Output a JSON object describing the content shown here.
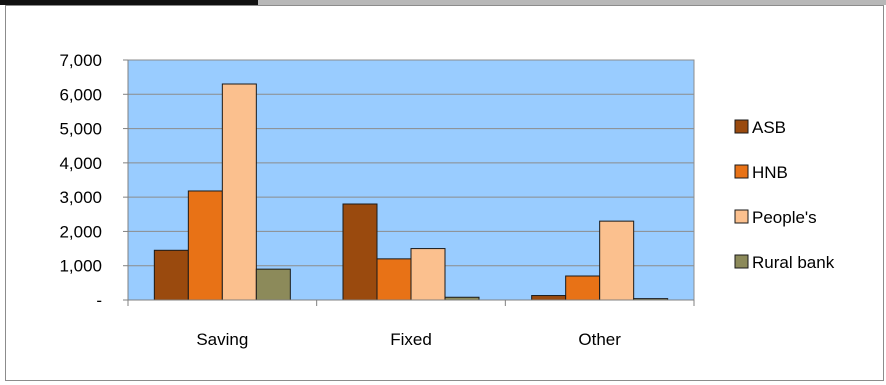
{
  "chart_data": {
    "type": "bar",
    "categories": [
      "Saving",
      "Fixed",
      "Other"
    ],
    "series": [
      {
        "name": "ASB",
        "color": "#9a4a0e",
        "values": [
          1450,
          2800,
          130
        ]
      },
      {
        "name": "HNB",
        "color": "#e87216",
        "values": [
          3180,
          1200,
          700
        ]
      },
      {
        "name": "People's",
        "color": "#fbc08e",
        "values": [
          6300,
          1500,
          2300
        ]
      },
      {
        "name": "Rural bank",
        "color": "#8c8a5a",
        "values": [
          900,
          80,
          40
        ]
      }
    ],
    "ylim": [
      0,
      7000
    ],
    "yticks": [
      0,
      1000,
      2000,
      3000,
      4000,
      5000,
      6000,
      7000
    ],
    "ytick_labels": [
      "-",
      "1,000",
      "2,000",
      "3,000",
      "4,000",
      "5,000",
      "6,000",
      "7,000"
    ],
    "title": "",
    "xlabel": "",
    "ylabel": "",
    "legend_position": "right",
    "grid": true,
    "plot_background": "#99ccff"
  }
}
